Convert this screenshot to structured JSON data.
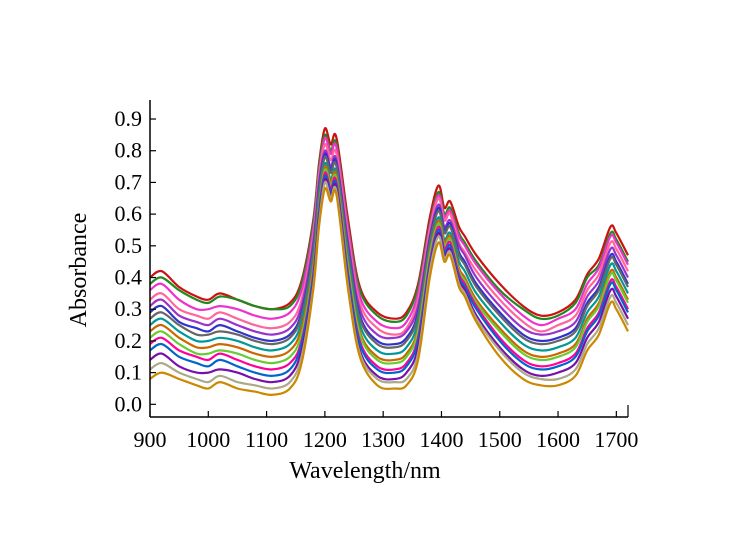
{
  "chart_data": {
    "type": "line",
    "title": "",
    "xlabel": "Wavelength/nm",
    "ylabel": "Absorbance",
    "xlim": [
      900,
      1720
    ],
    "ylim": [
      -0.04,
      0.96
    ],
    "xticks": [
      "900",
      "1000",
      "1100",
      "1200",
      "1300",
      "1400",
      "1500",
      "1600",
      "1700"
    ],
    "yticks": [
      "0.0",
      "0.1",
      "0.2",
      "0.3",
      "0.4",
      "0.5",
      "0.6",
      "0.7",
      "0.8",
      "0.9"
    ],
    "legend": "none",
    "grid": false,
    "x": [
      900,
      920,
      950,
      980,
      1000,
      1020,
      1050,
      1080,
      1110,
      1140,
      1160,
      1180,
      1190,
      1200,
      1210,
      1220,
      1240,
      1260,
      1290,
      1320,
      1340,
      1360,
      1380,
      1395,
      1405,
      1415,
      1430,
      1440,
      1460,
      1500,
      1540,
      1570,
      1600,
      1630,
      1650,
      1670,
      1690,
      1700,
      1720
    ],
    "series": [
      {
        "color": "#cc1111",
        "values": [
          0.4,
          0.42,
          0.37,
          0.34,
          0.33,
          0.35,
          0.33,
          0.31,
          0.3,
          0.32,
          0.39,
          0.58,
          0.76,
          0.87,
          0.82,
          0.84,
          0.58,
          0.37,
          0.29,
          0.27,
          0.29,
          0.38,
          0.59,
          0.69,
          0.62,
          0.64,
          0.56,
          0.53,
          0.47,
          0.38,
          0.31,
          0.28,
          0.29,
          0.33,
          0.41,
          0.46,
          0.56,
          0.54,
          0.47
        ]
      },
      {
        "color": "#228822",
        "values": [
          0.38,
          0.4,
          0.36,
          0.33,
          0.32,
          0.34,
          0.33,
          0.31,
          0.3,
          0.31,
          0.38,
          0.57,
          0.75,
          0.85,
          0.8,
          0.82,
          0.56,
          0.36,
          0.28,
          0.26,
          0.28,
          0.37,
          0.57,
          0.67,
          0.6,
          0.62,
          0.54,
          0.51,
          0.45,
          0.36,
          0.3,
          0.27,
          0.28,
          0.32,
          0.4,
          0.44,
          0.54,
          0.52,
          0.45
        ]
      },
      {
        "color": "#ee33cc",
        "values": [
          0.36,
          0.38,
          0.33,
          0.3,
          0.3,
          0.31,
          0.3,
          0.28,
          0.27,
          0.29,
          0.36,
          0.55,
          0.73,
          0.84,
          0.79,
          0.81,
          0.55,
          0.34,
          0.26,
          0.24,
          0.26,
          0.35,
          0.56,
          0.66,
          0.59,
          0.61,
          0.53,
          0.5,
          0.44,
          0.35,
          0.28,
          0.25,
          0.27,
          0.3,
          0.38,
          0.43,
          0.53,
          0.51,
          0.44
        ]
      },
      {
        "color": "#ff6699",
        "values": [
          0.33,
          0.35,
          0.3,
          0.28,
          0.27,
          0.29,
          0.27,
          0.25,
          0.24,
          0.26,
          0.33,
          0.53,
          0.72,
          0.82,
          0.77,
          0.79,
          0.53,
          0.32,
          0.24,
          0.22,
          0.24,
          0.33,
          0.55,
          0.65,
          0.58,
          0.6,
          0.51,
          0.48,
          0.42,
          0.33,
          0.26,
          0.23,
          0.25,
          0.28,
          0.36,
          0.41,
          0.51,
          0.49,
          0.42
        ]
      },
      {
        "color": "#9933cc",
        "values": [
          0.31,
          0.33,
          0.28,
          0.26,
          0.25,
          0.27,
          0.25,
          0.23,
          0.22,
          0.24,
          0.31,
          0.51,
          0.7,
          0.8,
          0.75,
          0.77,
          0.51,
          0.3,
          0.22,
          0.21,
          0.23,
          0.31,
          0.53,
          0.63,
          0.56,
          0.58,
          0.5,
          0.47,
          0.4,
          0.31,
          0.24,
          0.22,
          0.23,
          0.26,
          0.34,
          0.39,
          0.49,
          0.47,
          0.4
        ]
      },
      {
        "color": "#3333cc",
        "values": [
          0.29,
          0.31,
          0.26,
          0.24,
          0.23,
          0.25,
          0.23,
          0.21,
          0.2,
          0.22,
          0.29,
          0.49,
          0.68,
          0.79,
          0.74,
          0.76,
          0.49,
          0.28,
          0.2,
          0.19,
          0.21,
          0.29,
          0.52,
          0.62,
          0.55,
          0.57,
          0.48,
          0.45,
          0.38,
          0.29,
          0.22,
          0.2,
          0.21,
          0.24,
          0.32,
          0.37,
          0.47,
          0.45,
          0.38
        ]
      },
      {
        "color": "#666666",
        "values": [
          0.27,
          0.29,
          0.25,
          0.22,
          0.22,
          0.23,
          0.22,
          0.2,
          0.19,
          0.21,
          0.28,
          0.48,
          0.67,
          0.78,
          0.73,
          0.75,
          0.48,
          0.27,
          0.19,
          0.18,
          0.2,
          0.28,
          0.51,
          0.61,
          0.54,
          0.56,
          0.47,
          0.44,
          0.37,
          0.28,
          0.21,
          0.19,
          0.2,
          0.23,
          0.31,
          0.36,
          0.46,
          0.44,
          0.37
        ]
      },
      {
        "color": "#009999",
        "values": [
          0.25,
          0.27,
          0.23,
          0.2,
          0.2,
          0.21,
          0.2,
          0.18,
          0.17,
          0.19,
          0.26,
          0.46,
          0.65,
          0.76,
          0.71,
          0.73,
          0.46,
          0.25,
          0.17,
          0.16,
          0.18,
          0.26,
          0.49,
          0.59,
          0.52,
          0.54,
          0.45,
          0.42,
          0.35,
          0.26,
          0.19,
          0.17,
          0.18,
          0.21,
          0.29,
          0.34,
          0.44,
          0.42,
          0.35
        ]
      },
      {
        "color": "#cc6600",
        "values": [
          0.23,
          0.25,
          0.21,
          0.18,
          0.18,
          0.19,
          0.18,
          0.16,
          0.15,
          0.17,
          0.24,
          0.44,
          0.63,
          0.75,
          0.7,
          0.72,
          0.44,
          0.23,
          0.15,
          0.14,
          0.16,
          0.24,
          0.48,
          0.58,
          0.51,
          0.53,
          0.43,
          0.4,
          0.33,
          0.24,
          0.17,
          0.15,
          0.16,
          0.19,
          0.27,
          0.32,
          0.42,
          0.4,
          0.33
        ]
      },
      {
        "color": "#66cc33",
        "values": [
          0.21,
          0.23,
          0.19,
          0.16,
          0.16,
          0.17,
          0.16,
          0.14,
          0.13,
          0.15,
          0.22,
          0.42,
          0.62,
          0.74,
          0.69,
          0.71,
          0.43,
          0.22,
          0.14,
          0.13,
          0.15,
          0.23,
          0.47,
          0.57,
          0.5,
          0.52,
          0.42,
          0.39,
          0.32,
          0.23,
          0.16,
          0.14,
          0.15,
          0.18,
          0.26,
          0.31,
          0.41,
          0.39,
          0.32
        ]
      },
      {
        "color": "#ff0099",
        "values": [
          0.19,
          0.21,
          0.17,
          0.15,
          0.14,
          0.16,
          0.14,
          0.12,
          0.11,
          0.13,
          0.2,
          0.41,
          0.61,
          0.73,
          0.68,
          0.7,
          0.41,
          0.2,
          0.12,
          0.11,
          0.13,
          0.21,
          0.45,
          0.56,
          0.49,
          0.51,
          0.41,
          0.38,
          0.31,
          0.21,
          0.14,
          0.12,
          0.13,
          0.16,
          0.24,
          0.29,
          0.39,
          0.37,
          0.3
        ]
      },
      {
        "color": "#0066cc",
        "values": [
          0.17,
          0.19,
          0.15,
          0.13,
          0.12,
          0.14,
          0.12,
          0.1,
          0.09,
          0.11,
          0.19,
          0.4,
          0.6,
          0.72,
          0.67,
          0.69,
          0.4,
          0.19,
          0.11,
          0.1,
          0.12,
          0.2,
          0.44,
          0.55,
          0.48,
          0.5,
          0.4,
          0.37,
          0.3,
          0.2,
          0.13,
          0.11,
          0.12,
          0.15,
          0.23,
          0.28,
          0.38,
          0.36,
          0.29
        ]
      },
      {
        "color": "#7711aa",
        "values": [
          0.14,
          0.16,
          0.12,
          0.1,
          0.1,
          0.11,
          0.1,
          0.08,
          0.07,
          0.09,
          0.17,
          0.38,
          0.58,
          0.71,
          0.66,
          0.68,
          0.38,
          0.17,
          0.09,
          0.08,
          0.1,
          0.18,
          0.43,
          0.54,
          0.47,
          0.49,
          0.39,
          0.36,
          0.28,
          0.18,
          0.11,
          0.09,
          0.1,
          0.13,
          0.21,
          0.26,
          0.36,
          0.34,
          0.27
        ]
      },
      {
        "color": "#aaaa88",
        "values": [
          0.11,
          0.13,
          0.1,
          0.08,
          0.07,
          0.09,
          0.07,
          0.06,
          0.05,
          0.07,
          0.15,
          0.37,
          0.57,
          0.7,
          0.65,
          0.67,
          0.37,
          0.16,
          0.08,
          0.07,
          0.08,
          0.16,
          0.42,
          0.53,
          0.46,
          0.48,
          0.38,
          0.35,
          0.27,
          0.17,
          0.1,
          0.08,
          0.08,
          0.11,
          0.19,
          0.24,
          0.34,
          0.32,
          0.25
        ]
      },
      {
        "color": "#cc8800",
        "values": [
          0.08,
          0.1,
          0.08,
          0.06,
          0.05,
          0.07,
          0.05,
          0.04,
          0.03,
          0.05,
          0.13,
          0.36,
          0.56,
          0.68,
          0.64,
          0.66,
          0.36,
          0.15,
          0.06,
          0.05,
          0.06,
          0.14,
          0.4,
          0.51,
          0.45,
          0.47,
          0.37,
          0.34,
          0.26,
          0.15,
          0.08,
          0.06,
          0.06,
          0.09,
          0.17,
          0.22,
          0.32,
          0.3,
          0.23
        ]
      }
    ]
  }
}
